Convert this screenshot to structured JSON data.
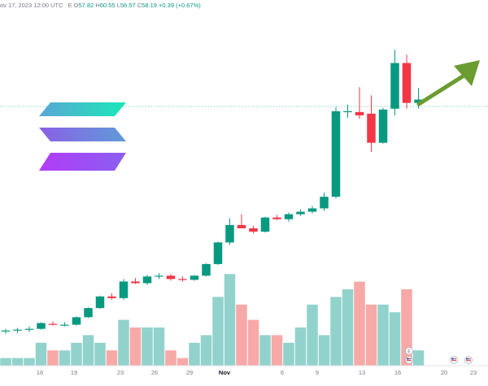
{
  "header": {
    "date_label": "ov 17, 2023 12:00 UTC",
    "symbol_fragment": "E",
    "open_label": "O",
    "open_value": "57.82",
    "high_label": "H",
    "high_value": "60.55",
    "low_label": "L",
    "low_value": "56.57",
    "close_label": "C",
    "close_value": "58.19",
    "change_value": "+0.39 (+0.67%)"
  },
  "icons": {
    "logo": "solana-logo-icon",
    "trend_arrow": "green-up-arrow-icon",
    "flag_icon": "us-flag-icon",
    "event_icon": "event-marker-icon"
  },
  "colors": {
    "up": "#089981",
    "down": "#f23645",
    "vol_up": "#92d2cc",
    "vol_down": "#f7a9a7",
    "arrow": "#6a9c31",
    "price_line": "#26a69a",
    "logo_top": [
      "#5bd8ad",
      "#18e8b6"
    ],
    "logo_mid": [
      "#5f8fd8",
      "#9b59ef"
    ],
    "logo_bot": [
      "#9945ff",
      "#c84ff0"
    ]
  },
  "chart_data": {
    "type": "candlestick",
    "title": "",
    "x_tick_labels": [
      "16",
      "19",
      "23",
      "26",
      "29",
      "Nov",
      "6",
      "9",
      "13",
      "16",
      "20",
      "23"
    ],
    "candles": [
      {
        "o": 21.2,
        "h": 21.5,
        "l": 20.9,
        "c": 21.3,
        "v": 1
      },
      {
        "o": 21.3,
        "h": 21.6,
        "l": 21.0,
        "c": 21.4,
        "v": 1
      },
      {
        "o": 21.4,
        "h": 21.8,
        "l": 21.1,
        "c": 21.5,
        "v": 1
      },
      {
        "o": 21.5,
        "h": 22.3,
        "l": 21.4,
        "c": 22.2,
        "v": 3
      },
      {
        "o": 22.1,
        "h": 22.4,
        "l": 21.9,
        "c": 22.0,
        "v": 2
      },
      {
        "o": 22.0,
        "h": 22.3,
        "l": 21.8,
        "c": 22.0,
        "v": 2
      },
      {
        "o": 22.0,
        "h": 23.0,
        "l": 21.9,
        "c": 22.9,
        "v": 3
      },
      {
        "o": 22.9,
        "h": 24.1,
        "l": 22.8,
        "c": 24.0,
        "v": 4
      },
      {
        "o": 24.0,
        "h": 25.5,
        "l": 23.9,
        "c": 25.4,
        "v": 3
      },
      {
        "o": 25.4,
        "h": 25.8,
        "l": 25.0,
        "c": 25.2,
        "v": 2
      },
      {
        "o": 25.2,
        "h": 27.5,
        "l": 25.0,
        "c": 27.2,
        "v": 6
      },
      {
        "o": 27.2,
        "h": 27.6,
        "l": 26.9,
        "c": 27.0,
        "v": 5
      },
      {
        "o": 27.0,
        "h": 28.0,
        "l": 26.8,
        "c": 27.8,
        "v": 5
      },
      {
        "o": 27.8,
        "h": 28.2,
        "l": 27.5,
        "c": 27.9,
        "v": 5
      },
      {
        "o": 27.9,
        "h": 28.1,
        "l": 27.3,
        "c": 27.5,
        "v": 2
      },
      {
        "o": 27.5,
        "h": 27.8,
        "l": 27.2,
        "c": 27.4,
        "v": 1
      },
      {
        "o": 27.4,
        "h": 28.0,
        "l": 27.3,
        "c": 27.9,
        "v": 3
      },
      {
        "o": 27.9,
        "h": 29.4,
        "l": 27.8,
        "c": 29.3,
        "v": 4
      },
      {
        "o": 29.3,
        "h": 32.0,
        "l": 29.2,
        "c": 31.9,
        "v": 9
      },
      {
        "o": 31.9,
        "h": 34.8,
        "l": 31.6,
        "c": 34.0,
        "v": 12
      },
      {
        "o": 34.0,
        "h": 35.3,
        "l": 33.7,
        "c": 33.6,
        "v": 8
      },
      {
        "o": 33.6,
        "h": 33.9,
        "l": 33.0,
        "c": 33.2,
        "v": 6
      },
      {
        "o": 33.2,
        "h": 35.0,
        "l": 33.1,
        "c": 34.9,
        "v": 4
      },
      {
        "o": 34.9,
        "h": 35.2,
        "l": 34.6,
        "c": 34.7,
        "v": 4
      },
      {
        "o": 34.7,
        "h": 35.5,
        "l": 34.4,
        "c": 35.3,
        "v": 3
      },
      {
        "o": 35.3,
        "h": 35.9,
        "l": 35.1,
        "c": 35.6,
        "v": 5
      },
      {
        "o": 35.6,
        "h": 36.3,
        "l": 35.4,
        "c": 36.0,
        "v": 8
      },
      {
        "o": 36.0,
        "h": 37.9,
        "l": 35.7,
        "c": 37.4,
        "v": 4
      },
      {
        "o": 37.4,
        "h": 48.2,
        "l": 37.2,
        "c": 47.7,
        "v": 9
      },
      {
        "o": 47.7,
        "h": 48.5,
        "l": 46.9,
        "c": 47.7,
        "v": 10
      },
      {
        "o": 47.6,
        "h": 50.6,
        "l": 46.8,
        "c": 47.2,
        "v": 11
      },
      {
        "o": 47.4,
        "h": 49.6,
        "l": 42.8,
        "c": 43.9,
        "v": 8
      },
      {
        "o": 43.9,
        "h": 48.1,
        "l": 43.8,
        "c": 47.9,
        "v": 8
      },
      {
        "o": 48.0,
        "h": 55.1,
        "l": 47.2,
        "c": 53.5,
        "v": 7
      },
      {
        "o": 53.5,
        "h": 54.5,
        "l": 48.0,
        "c": 48.7,
        "v": 10
      },
      {
        "o": 48.7,
        "h": 50.5,
        "l": 48.0,
        "c": 49.1,
        "v": 2
      }
    ]
  }
}
